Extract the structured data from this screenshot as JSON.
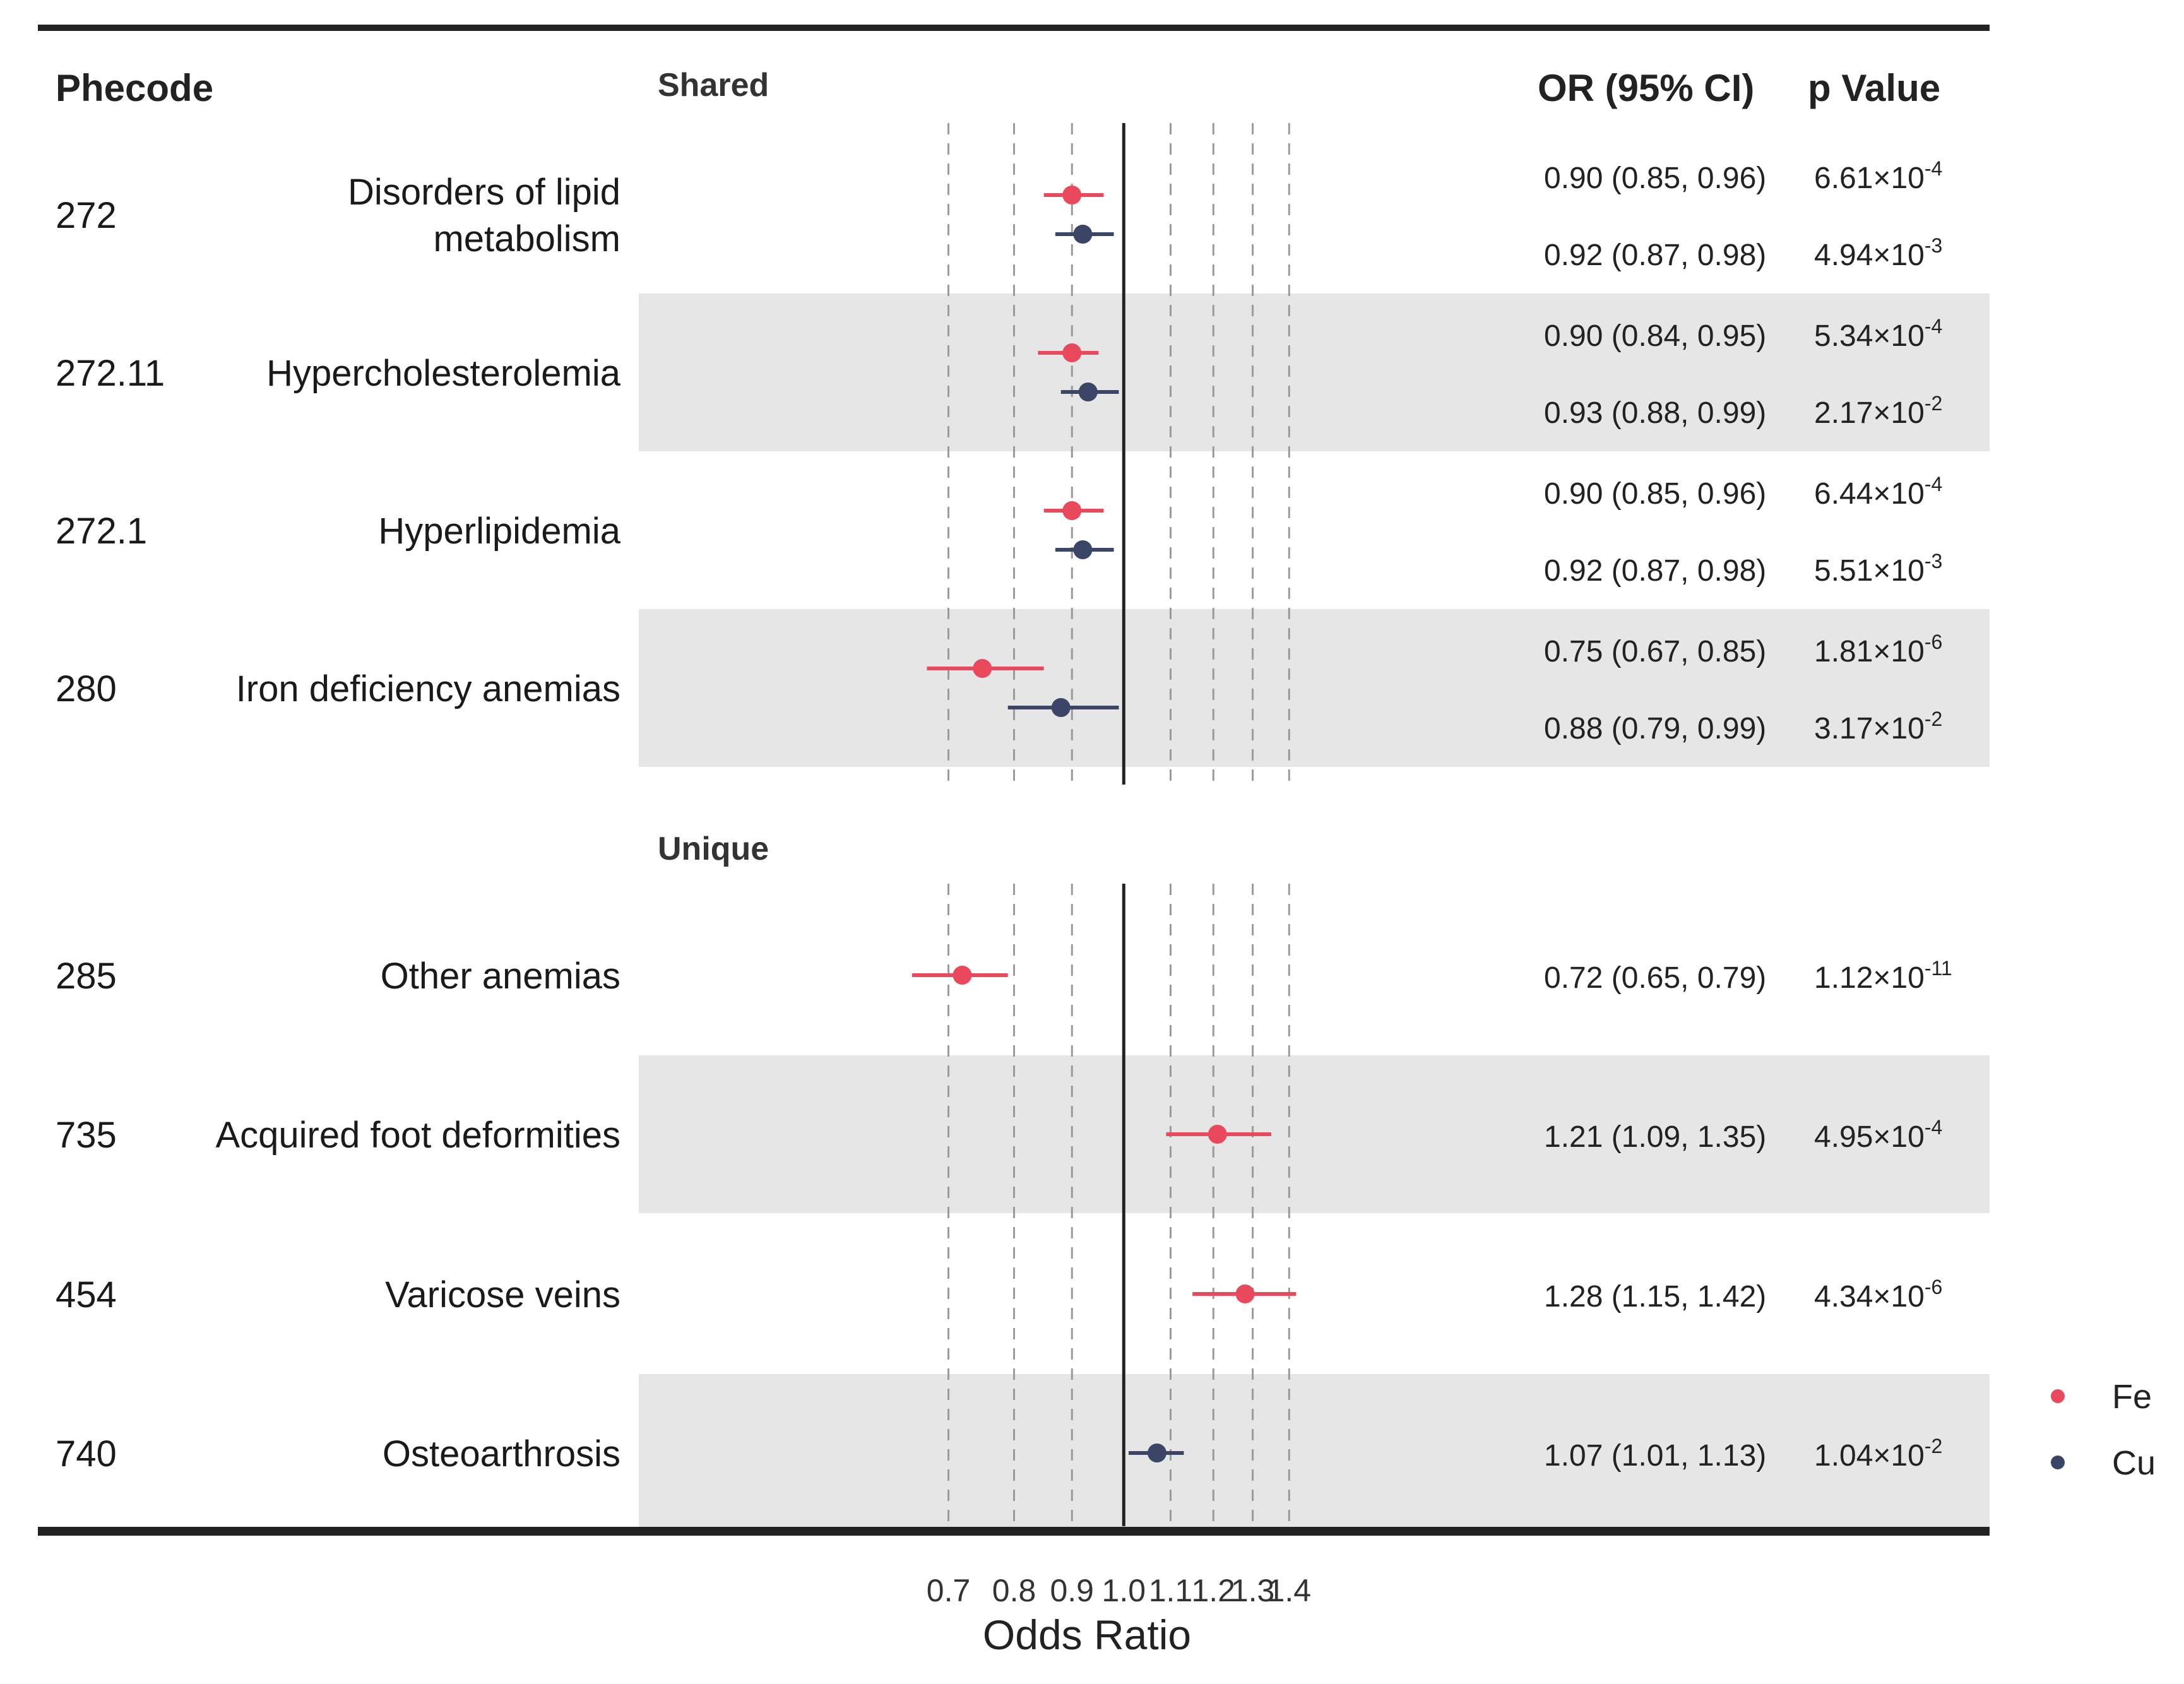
{
  "headers": {
    "phecode": "Phecode",
    "or_ci": "OR (95% CI)",
    "p_value": "p Value"
  },
  "sections": [
    {
      "label": "Shared"
    },
    {
      "label": "Unique"
    }
  ],
  "colors": {
    "Fe": "#e8495c",
    "Cu": "#3b4566",
    "stripe": "#e6e6e6",
    "frame": "#222222",
    "grid": "#9a9a9a"
  },
  "chart_data": {
    "type": "forest",
    "xlabel": "Odds Ratio",
    "xlim": [
      0.62,
      1.44
    ],
    "ticks": [
      "0.7",
      "0.8",
      "0.9",
      "1.0",
      "1.1",
      "1.2",
      "1.3",
      "1.4"
    ],
    "reference_line": 1.0,
    "x_scale": "log",
    "legend": {
      "position": "bottom-right",
      "entries": [
        {
          "name": "Fe",
          "color": "#e8495c"
        },
        {
          "name": "Cu",
          "color": "#3b4566"
        }
      ]
    },
    "rows": [
      {
        "section": 0,
        "code": "272",
        "name_lines": [
          "Disorders of lipid",
          "metabolism"
        ],
        "shaded": false,
        "estimates": [
          {
            "series": "Fe",
            "or": 0.9,
            "lo": 0.85,
            "hi": 0.96,
            "or_text": "0.90 (0.85, 0.96)",
            "p_mant": "6.61×10",
            "p_exp": "-4"
          },
          {
            "series": "Cu",
            "or": 0.92,
            "lo": 0.87,
            "hi": 0.98,
            "or_text": "0.92 (0.87, 0.98)",
            "p_mant": "4.94×10",
            "p_exp": "-3"
          }
        ]
      },
      {
        "section": 0,
        "code": "272.11",
        "name_lines": [
          "Hypercholesterolemia"
        ],
        "shaded": true,
        "estimates": [
          {
            "series": "Fe",
            "or": 0.9,
            "lo": 0.84,
            "hi": 0.95,
            "or_text": "0.90 (0.84, 0.95)",
            "p_mant": "5.34×10",
            "p_exp": "-4"
          },
          {
            "series": "Cu",
            "or": 0.93,
            "lo": 0.88,
            "hi": 0.99,
            "or_text": "0.93 (0.88, 0.99)",
            "p_mant": "2.17×10",
            "p_exp": "-2"
          }
        ]
      },
      {
        "section": 0,
        "code": "272.1",
        "name_lines": [
          "Hyperlipidemia"
        ],
        "shaded": false,
        "estimates": [
          {
            "series": "Fe",
            "or": 0.9,
            "lo": 0.85,
            "hi": 0.96,
            "or_text": "0.90 (0.85, 0.96)",
            "p_mant": "6.44×10",
            "p_exp": "-4"
          },
          {
            "series": "Cu",
            "or": 0.92,
            "lo": 0.87,
            "hi": 0.98,
            "or_text": "0.92 (0.87, 0.98)",
            "p_mant": "5.51×10",
            "p_exp": "-3"
          }
        ]
      },
      {
        "section": 0,
        "code": "280",
        "name_lines": [
          "Iron deficiency anemias"
        ],
        "shaded": true,
        "estimates": [
          {
            "series": "Fe",
            "or": 0.75,
            "lo": 0.67,
            "hi": 0.85,
            "or_text": "0.75 (0.67, 0.85)",
            "p_mant": "1.81×10",
            "p_exp": "-6"
          },
          {
            "series": "Cu",
            "or": 0.88,
            "lo": 0.79,
            "hi": 0.99,
            "or_text": "0.88 (0.79, 0.99)",
            "p_mant": "3.17×10",
            "p_exp": "-2"
          }
        ]
      },
      {
        "section": 1,
        "code": "285",
        "name_lines": [
          "Other anemias"
        ],
        "shaded": false,
        "estimates": [
          {
            "series": "Fe",
            "or": 0.72,
            "lo": 0.65,
            "hi": 0.79,
            "or_text": "0.72 (0.65, 0.79)",
            "p_mant": "1.12×10",
            "p_exp": "-11"
          }
        ]
      },
      {
        "section": 1,
        "code": "735",
        "name_lines": [
          "Acquired foot deformities"
        ],
        "shaded": true,
        "estimates": [
          {
            "series": "Fe",
            "or": 1.21,
            "lo": 1.09,
            "hi": 1.35,
            "or_text": "1.21 (1.09, 1.35)",
            "p_mant": "4.95×10",
            "p_exp": "-4"
          }
        ]
      },
      {
        "section": 1,
        "code": "454",
        "name_lines": [
          "Varicose veins"
        ],
        "shaded": false,
        "estimates": [
          {
            "series": "Fe",
            "or": 1.28,
            "lo": 1.15,
            "hi": 1.42,
            "or_text": "1.28 (1.15, 1.42)",
            "p_mant": "4.34×10",
            "p_exp": "-6"
          }
        ]
      },
      {
        "section": 1,
        "code": "740",
        "name_lines": [
          "Osteoarthrosis"
        ],
        "shaded": true,
        "estimates": [
          {
            "series": "Cu",
            "or": 1.07,
            "lo": 1.01,
            "hi": 1.13,
            "or_text": "1.07 (1.01, 1.13)",
            "p_mant": "1.04×10",
            "p_exp": "-2"
          }
        ]
      }
    ]
  }
}
